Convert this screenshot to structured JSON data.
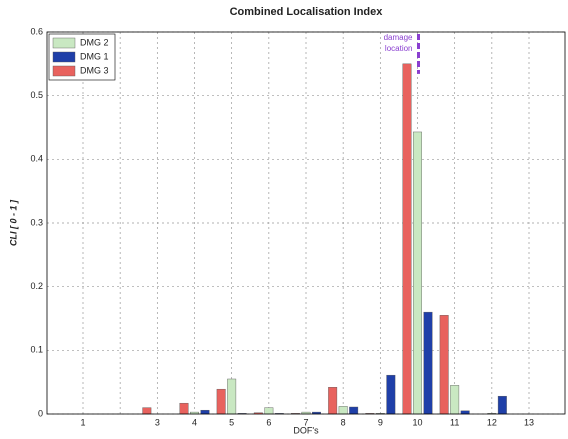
{
  "chart_data": {
    "type": "bar",
    "title": "Combined Localisation Index",
    "x_label": "DOF's",
    "y_label": "CLI  [ 0 - 1 ]",
    "categories": [
      "1",
      null,
      "3",
      "4",
      "5",
      "6",
      "7",
      "8",
      "9",
      "10",
      "11",
      "12",
      "13"
    ],
    "series": [
      {
        "name": "DMG 3",
        "color": "#e8625e",
        "values": [
          0,
          0,
          0.01,
          0.017,
          0.039,
          0.002,
          0.001,
          0.042,
          0.001,
          0.55,
          0.155,
          0,
          0
        ]
      },
      {
        "name": "DMG 2",
        "color": "#c9e8c2",
        "values": [
          0,
          0,
          0,
          0.003,
          0.055,
          0.01,
          0.003,
          0.012,
          0.001,
          0.443,
          0.045,
          0.001,
          0
        ]
      },
      {
        "name": "DMG 1",
        "color": "#1f3fa8",
        "values": [
          0,
          0,
          0,
          0.006,
          0.001,
          0.001,
          0.003,
          0.011,
          0.061,
          0.16,
          0.005,
          0.028,
          0
        ]
      }
    ],
    "legend_order": [
      1,
      2,
      0
    ],
    "annotation": [
      "damage",
      "location"
    ],
    "annotation_color": "#8a3fd0",
    "ylim": [
      0,
      0.6
    ],
    "yticks": [
      0,
      0.1,
      0.2,
      0.3,
      0.4,
      0.5,
      0.6
    ],
    "grid": true
  }
}
